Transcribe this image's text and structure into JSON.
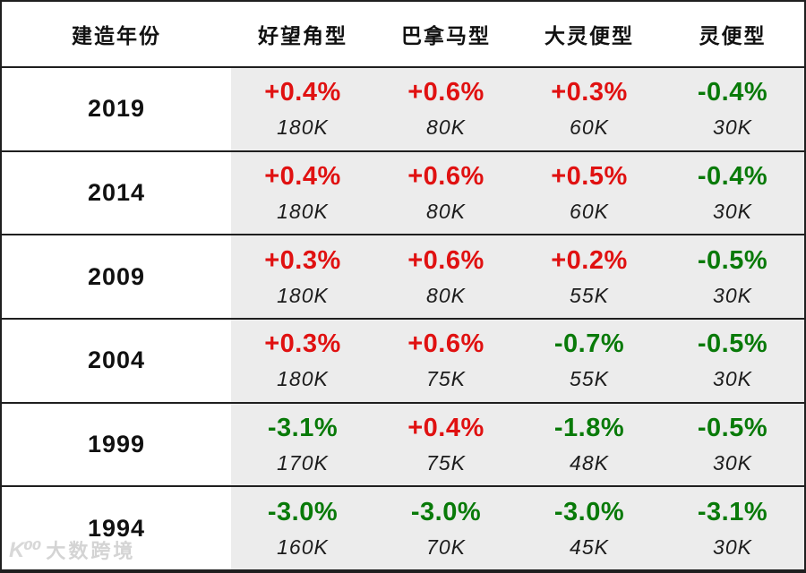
{
  "chart_data": {
    "type": "table",
    "title": "",
    "columns": [
      "建造年份",
      "好望角型",
      "巴拿马型",
      "大灵便型",
      "灵便型"
    ],
    "rows": [
      {
        "year": "2019",
        "cells": [
          {
            "change": "+0.4%",
            "trend": "up",
            "size": "180K"
          },
          {
            "change": "+0.6%",
            "trend": "up",
            "size": "80K"
          },
          {
            "change": "+0.3%",
            "trend": "up",
            "size": "60K"
          },
          {
            "change": "-0.4%",
            "trend": "down",
            "size": "30K"
          }
        ]
      },
      {
        "year": "2014",
        "cells": [
          {
            "change": "+0.4%",
            "trend": "up",
            "size": "180K"
          },
          {
            "change": "+0.6%",
            "trend": "up",
            "size": "80K"
          },
          {
            "change": "+0.5%",
            "trend": "up",
            "size": "60K"
          },
          {
            "change": "-0.4%",
            "trend": "down",
            "size": "30K"
          }
        ]
      },
      {
        "year": "2009",
        "cells": [
          {
            "change": "+0.3%",
            "trend": "up",
            "size": "180K"
          },
          {
            "change": "+0.6%",
            "trend": "up",
            "size": "80K"
          },
          {
            "change": "+0.2%",
            "trend": "up",
            "size": "55K"
          },
          {
            "change": "-0.5%",
            "trend": "down",
            "size": "30K"
          }
        ]
      },
      {
        "year": "2004",
        "cells": [
          {
            "change": "+0.3%",
            "trend": "up",
            "size": "180K"
          },
          {
            "change": "+0.6%",
            "trend": "up",
            "size": "75K"
          },
          {
            "change": "-0.7%",
            "trend": "down",
            "size": "55K"
          },
          {
            "change": "-0.5%",
            "trend": "down",
            "size": "30K"
          }
        ]
      },
      {
        "year": "1999",
        "cells": [
          {
            "change": "-3.1%",
            "trend": "down",
            "size": "170K"
          },
          {
            "change": "+0.4%",
            "trend": "up",
            "size": "75K"
          },
          {
            "change": "-1.8%",
            "trend": "down",
            "size": "48K"
          },
          {
            "change": "-0.5%",
            "trend": "down",
            "size": "30K"
          }
        ]
      },
      {
        "year": "1994",
        "cells": [
          {
            "change": "-3.0%",
            "trend": "down",
            "size": "160K"
          },
          {
            "change": "-3.0%",
            "trend": "down",
            "size": "70K"
          },
          {
            "change": "-3.0%",
            "trend": "down",
            "size": "45K"
          },
          {
            "change": "-3.1%",
            "trend": "down",
            "size": "30K"
          }
        ]
      }
    ],
    "layout_hints": {
      "positive_color": "#e01111",
      "negative_color": "#097a09",
      "data_cell_background": "#ececec",
      "border_color": "#1f1f1f"
    }
  },
  "watermark": {
    "logo": "K⁰⁰",
    "text": "大数跨境"
  }
}
